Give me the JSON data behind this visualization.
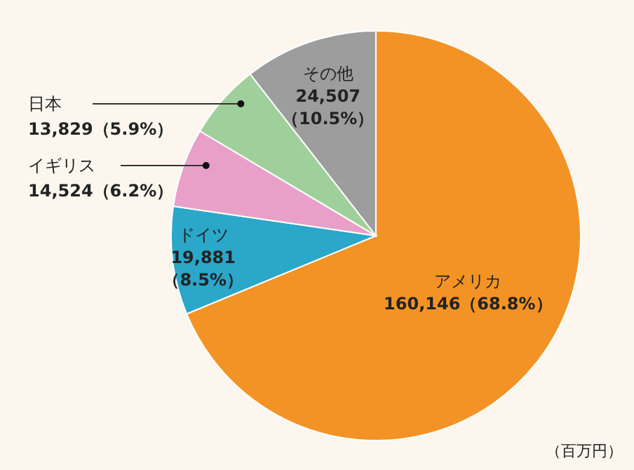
{
  "chart_data": {
    "type": "pie",
    "categories": [
      "アメリカ",
      "ドイツ",
      "イギリス",
      "日本",
      "その他"
    ],
    "values": [
      160146,
      19881,
      14524,
      13829,
      24507
    ],
    "colors": [
      "#f39325",
      "#2aa7c9",
      "#e8a0c8",
      "#9fd09b",
      "#9d9d9d"
    ],
    "value_labels": [
      "160,146（68.8%）",
      "19,881（8.5%）",
      "14,524（6.2%）",
      "13,829（5.9%）",
      "24,507（10.5%）"
    ],
    "annotations": [
      "（百万円）"
    ]
  }
}
